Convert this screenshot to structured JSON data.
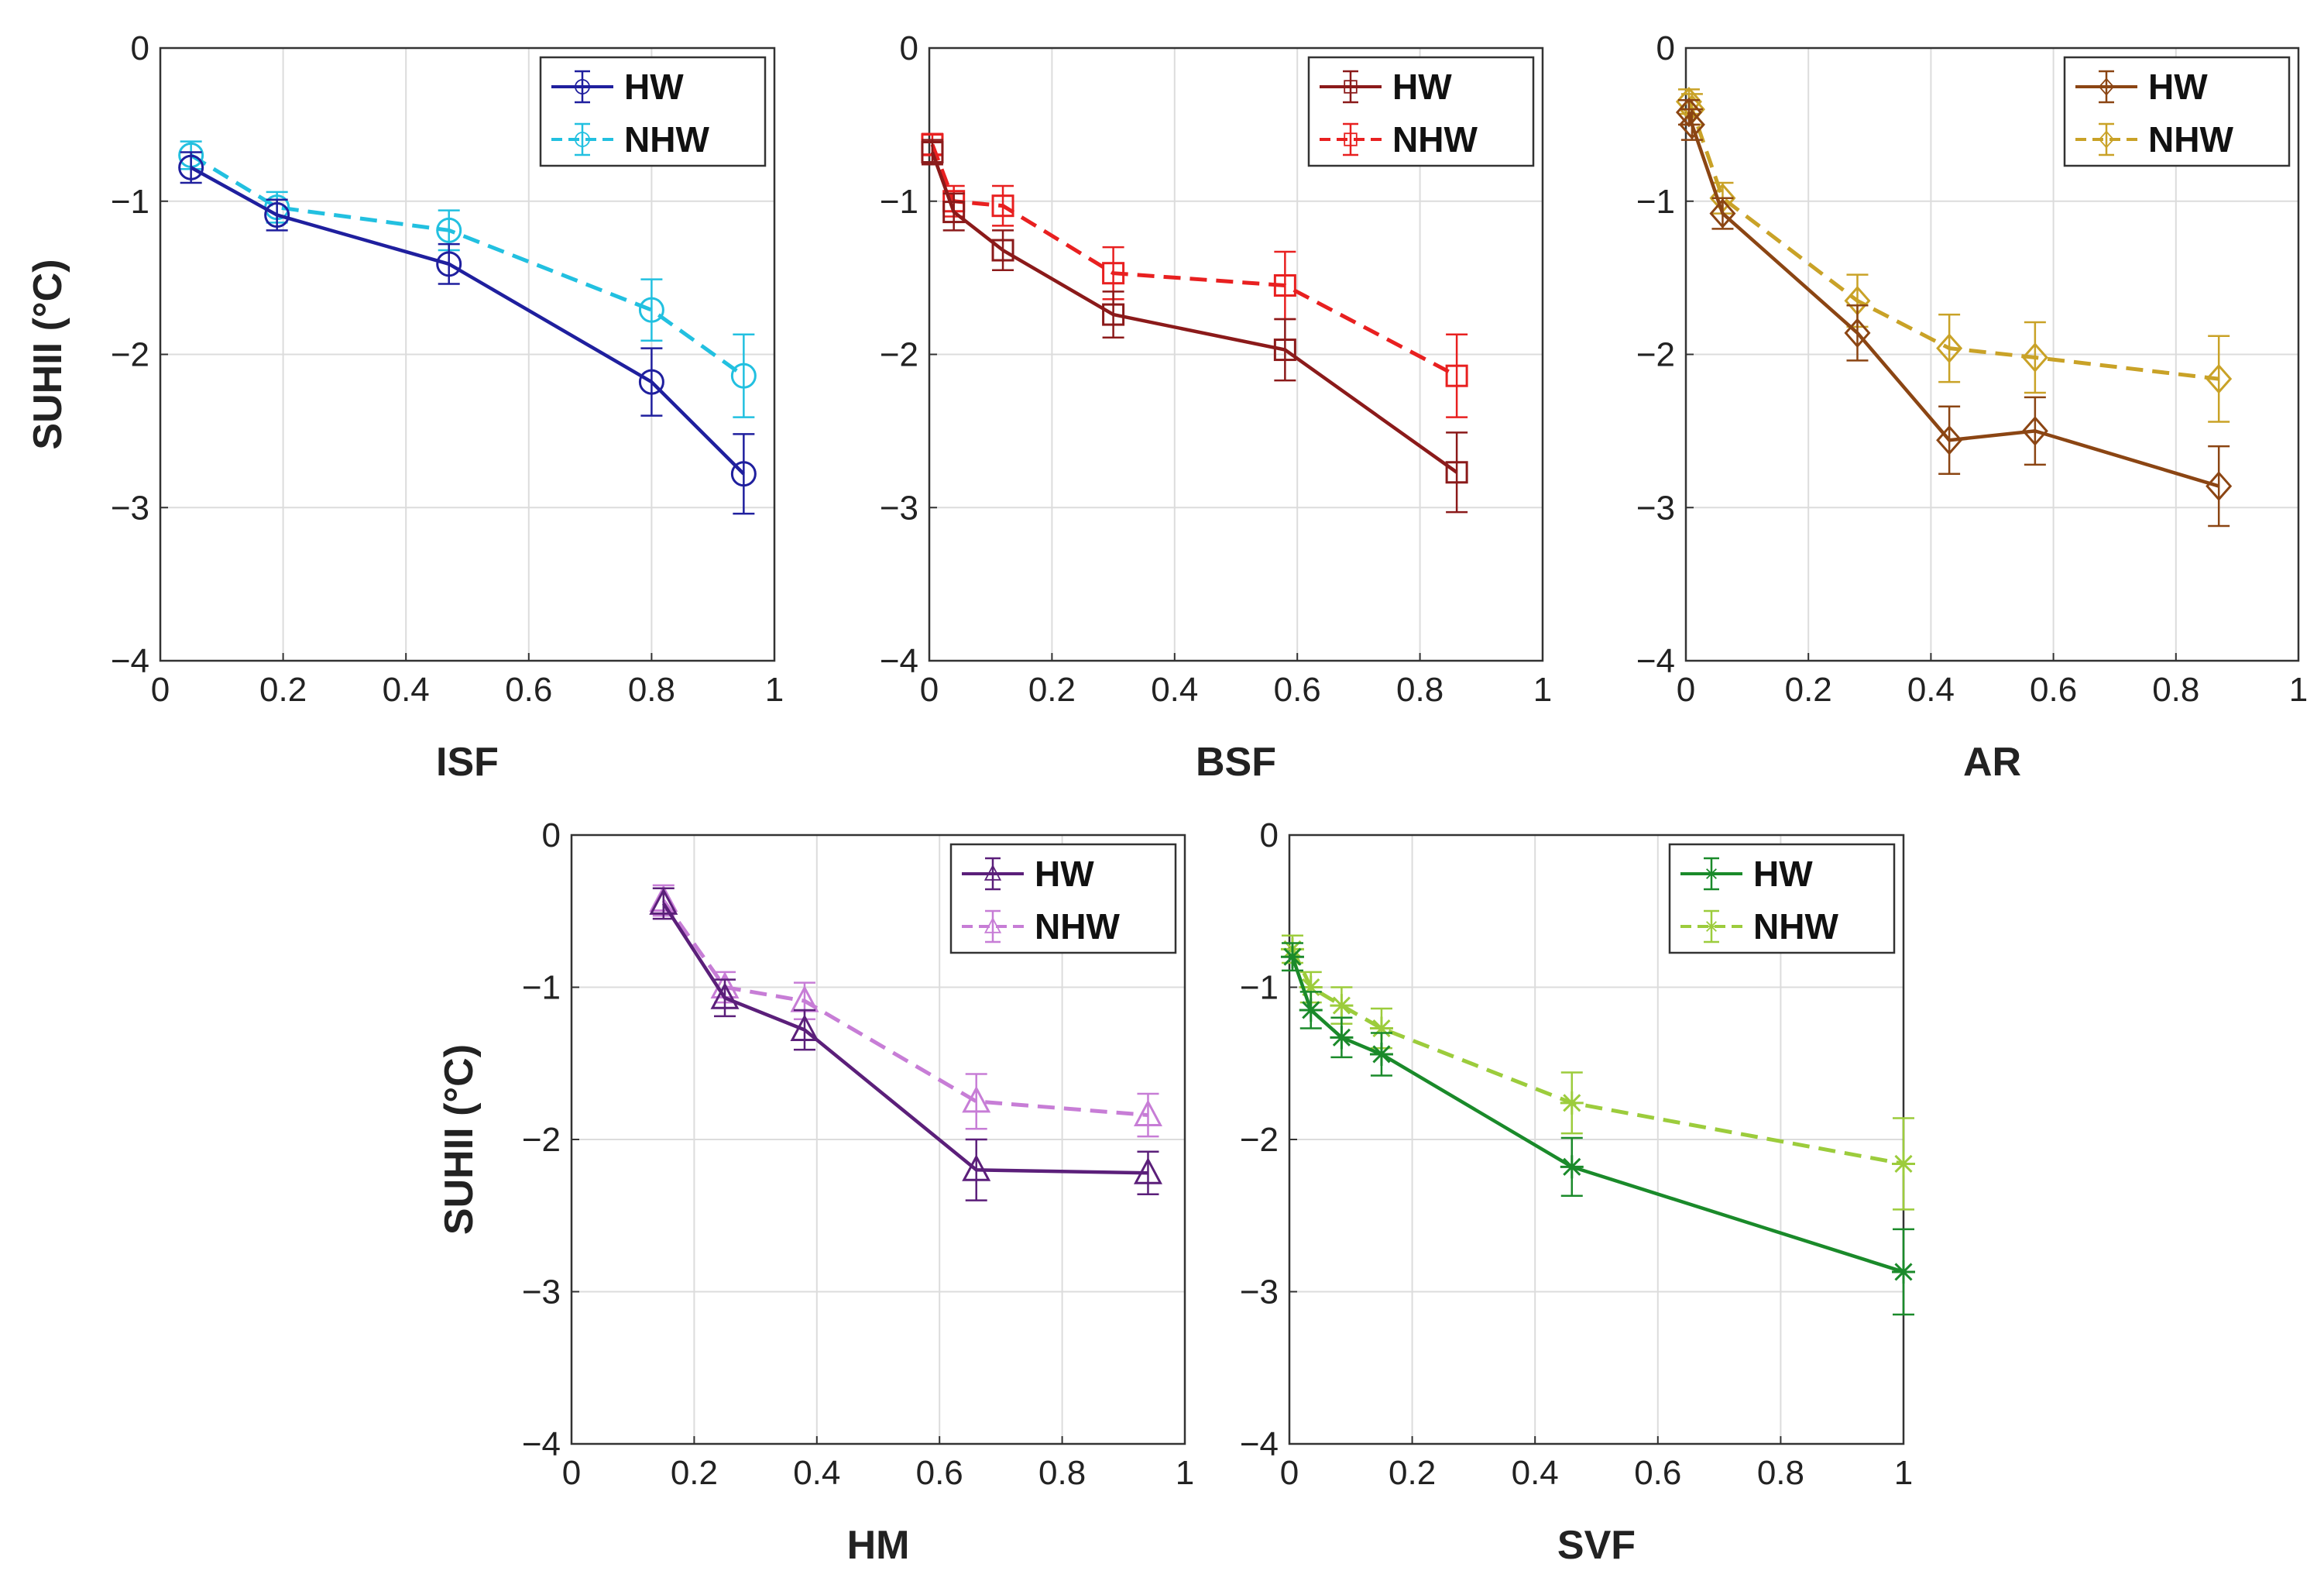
{
  "chart_data": [
    {
      "type": "line",
      "xlabel": "ISF",
      "ylabel": "SUHII (°C)",
      "xlim": [
        0,
        1
      ],
      "ylim": [
        -4,
        0
      ],
      "xticks": [
        "0",
        "0.2",
        "0.4",
        "0.6",
        "0.8",
        "1"
      ],
      "yticks": [
        "0",
        "−1",
        "−2",
        "−3",
        "−4"
      ],
      "grid": true,
      "legend_position": "top-right",
      "marker": "circle",
      "series": [
        {
          "name": "HW",
          "color": "#1f1f9e",
          "dash": false,
          "x": [
            0.05,
            0.19,
            0.47,
            0.8,
            0.95
          ],
          "y": [
            -0.78,
            -1.09,
            -1.41,
            -2.18,
            -2.78
          ],
          "err": [
            0.1,
            0.1,
            0.13,
            0.22,
            0.26
          ]
        },
        {
          "name": "NHW",
          "color": "#22c0e0",
          "dash": true,
          "x": [
            0.05,
            0.19,
            0.47,
            0.8,
            0.95
          ],
          "y": [
            -0.7,
            -1.04,
            -1.19,
            -1.71,
            -2.14
          ],
          "err": [
            0.09,
            0.1,
            0.13,
            0.2,
            0.27
          ]
        }
      ]
    },
    {
      "type": "line",
      "xlabel": "BSF",
      "ylabel": "",
      "xlim": [
        0,
        1
      ],
      "ylim": [
        -4,
        0
      ],
      "xticks": [
        "0",
        "0.2",
        "0.4",
        "0.6",
        "0.8",
        "1"
      ],
      "yticks": [
        "0",
        "−1",
        "−2",
        "−3",
        "−4"
      ],
      "grid": true,
      "legend_position": "top-right",
      "marker": "square",
      "series": [
        {
          "name": "HW",
          "color": "#8b1a1a",
          "dash": false,
          "x": [
            0.005,
            0.04,
            0.12,
            0.3,
            0.58,
            0.86
          ],
          "y": [
            -0.68,
            -1.07,
            -1.32,
            -1.74,
            -1.97,
            -2.77
          ],
          "err": [
            0.08,
            0.12,
            0.13,
            0.15,
            0.2,
            0.26
          ]
        },
        {
          "name": "NHW",
          "color": "#e82020",
          "dash": true,
          "x": [
            0.005,
            0.04,
            0.12,
            0.3,
            0.58,
            0.86
          ],
          "y": [
            -0.63,
            -1.0,
            -1.03,
            -1.47,
            -1.55,
            -2.14
          ],
          "err": [
            0.07,
            0.1,
            0.13,
            0.17,
            0.22,
            0.27
          ]
        }
      ]
    },
    {
      "type": "line",
      "xlabel": "AR",
      "ylabel": "",
      "xlim": [
        0,
        1
      ],
      "ylim": [
        -4,
        0
      ],
      "xticks": [
        "0",
        "0.2",
        "0.4",
        "0.6",
        "0.8",
        "1"
      ],
      "yticks": [
        "0",
        "−1",
        "−2",
        "−3",
        "−4"
      ],
      "grid": true,
      "legend_position": "top-right",
      "marker": "diamond",
      "series": [
        {
          "name": "HW",
          "color": "#8b4513",
          "dash": false,
          "x": [
            0.005,
            0.01,
            0.06,
            0.28,
            0.43,
            0.57,
            0.87
          ],
          "y": [
            -0.42,
            -0.5,
            -1.08,
            -1.86,
            -2.56,
            -2.5,
            -2.86
          ],
          "err": [
            0.08,
            0.1,
            0.1,
            0.18,
            0.22,
            0.22,
            0.26
          ]
        },
        {
          "name": "NHW",
          "color": "#c9a227",
          "dash": true,
          "x": [
            0.005,
            0.01,
            0.06,
            0.28,
            0.43,
            0.57,
            0.87
          ],
          "y": [
            -0.35,
            -0.4,
            -0.98,
            -1.65,
            -1.96,
            -2.02,
            -2.16
          ],
          "err": [
            0.08,
            0.1,
            0.1,
            0.17,
            0.22,
            0.23,
            0.28
          ]
        }
      ]
    },
    {
      "type": "line",
      "xlabel": "HM",
      "ylabel": "SUHII (°C)",
      "xlim": [
        0,
        1
      ],
      "ylim": [
        -4,
        0
      ],
      "xticks": [
        "0",
        "0.2",
        "0.4",
        "0.6",
        "0.8",
        "1"
      ],
      "yticks": [
        "0",
        "−1",
        "−2",
        "−3",
        "−4"
      ],
      "grid": true,
      "legend_position": "top-right",
      "marker": "triangle",
      "series": [
        {
          "name": "HW",
          "color": "#5b1f7a",
          "dash": false,
          "x": [
            0.15,
            0.25,
            0.38,
            0.66,
            0.94
          ],
          "y": [
            -0.45,
            -1.07,
            -1.28,
            -2.2,
            -2.22
          ],
          "err": [
            0.1,
            0.12,
            0.13,
            0.2,
            0.14
          ]
        },
        {
          "name": "NHW",
          "color": "#c77dd6",
          "dash": true,
          "x": [
            0.15,
            0.25,
            0.38,
            0.66,
            0.94
          ],
          "y": [
            -0.43,
            -1.0,
            -1.09,
            -1.75,
            -1.84
          ],
          "err": [
            0.1,
            0.1,
            0.12,
            0.18,
            0.14
          ]
        }
      ]
    },
    {
      "type": "line",
      "xlabel": "SVF",
      "ylabel": "",
      "xlim": [
        0,
        1
      ],
      "ylim": [
        -4,
        0
      ],
      "xticks": [
        "0",
        "0.2",
        "0.4",
        "0.6",
        "0.8",
        "1"
      ],
      "yticks": [
        "0",
        "−1",
        "−2",
        "−3",
        "−4"
      ],
      "grid": true,
      "legend_position": "top-right",
      "marker": "asterisk",
      "series": [
        {
          "name": "HW",
          "color": "#1a8a2a",
          "dash": false,
          "x": [
            0.005,
            0.035,
            0.085,
            0.15,
            0.46,
            1.0
          ],
          "y": [
            -0.8,
            -1.15,
            -1.33,
            -1.44,
            -2.18,
            -2.87
          ],
          "err": [
            0.09,
            0.12,
            0.13,
            0.14,
            0.19,
            0.28
          ]
        },
        {
          "name": "NHW",
          "color": "#9ccc3c",
          "dash": true,
          "x": [
            0.005,
            0.035,
            0.085,
            0.15,
            0.46,
            1.0
          ],
          "y": [
            -0.75,
            -1.0,
            -1.12,
            -1.27,
            -1.76,
            -2.16
          ],
          "err": [
            0.09,
            0.1,
            0.12,
            0.13,
            0.2,
            0.3
          ]
        }
      ]
    }
  ]
}
